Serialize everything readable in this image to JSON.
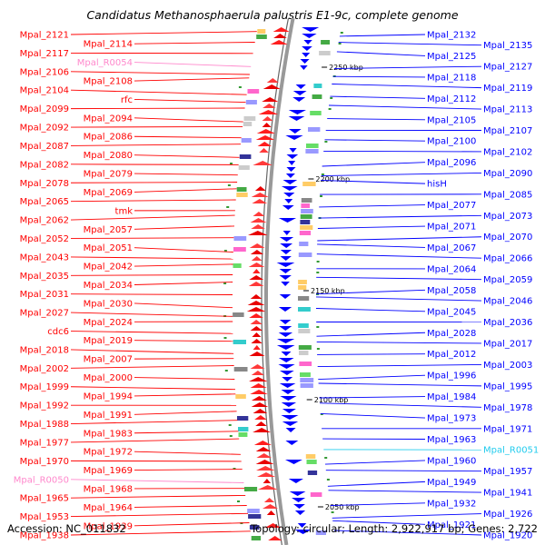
{
  "title": "Candidatus Methanosphaerula palustris E1-9c, complete genome",
  "footer": {
    "accession": "Accession: NC_011832",
    "summary": "Topology: circular; Length: 2,922,917 bp; Genes: 2,722"
  },
  "colors": {
    "plus_strand": "#ff0000",
    "minus_strand": "#0000ff",
    "rna_plus": "#ff88cc",
    "rna_minus": "#22ccee",
    "backbone": "#999999"
  },
  "ruler": [
    {
      "label": "2250 kbp"
    },
    {
      "label": "2200 kbp"
    },
    {
      "label": "2150 kbp"
    },
    {
      "label": "2100 kbp"
    },
    {
      "label": "2050 kbp"
    }
  ],
  "left_labels": [
    {
      "text": "Mpal_2121",
      "kind": "gene"
    },
    {
      "text": "Mpal_2114",
      "kind": "gene"
    },
    {
      "text": "Mpal_2117",
      "kind": "gene"
    },
    {
      "text": "Mpal_R0054",
      "kind": "rna"
    },
    {
      "text": "Mpal_2106",
      "kind": "gene"
    },
    {
      "text": "Mpal_2108",
      "kind": "gene"
    },
    {
      "text": "Mpal_2104",
      "kind": "gene"
    },
    {
      "text": "rfc",
      "kind": "gene"
    },
    {
      "text": "Mpal_2099",
      "kind": "gene"
    },
    {
      "text": "Mpal_2094",
      "kind": "gene"
    },
    {
      "text": "Mpal_2092",
      "kind": "gene"
    },
    {
      "text": "Mpal_2086",
      "kind": "gene"
    },
    {
      "text": "Mpal_2087",
      "kind": "gene"
    },
    {
      "text": "Mpal_2080",
      "kind": "gene"
    },
    {
      "text": "Mpal_2082",
      "kind": "gene"
    },
    {
      "text": "Mpal_2079",
      "kind": "gene"
    },
    {
      "text": "Mpal_2078",
      "kind": "gene"
    },
    {
      "text": "Mpal_2069",
      "kind": "gene"
    },
    {
      "text": "Mpal_2065",
      "kind": "gene"
    },
    {
      "text": "tmk",
      "kind": "gene"
    },
    {
      "text": "Mpal_2062",
      "kind": "gene"
    },
    {
      "text": "Mpal_2057",
      "kind": "gene"
    },
    {
      "text": "Mpal_2052",
      "kind": "gene"
    },
    {
      "text": "Mpal_2051",
      "kind": "gene"
    },
    {
      "text": "Mpal_2043",
      "kind": "gene"
    },
    {
      "text": "Mpal_2042",
      "kind": "gene"
    },
    {
      "text": "Mpal_2035",
      "kind": "gene"
    },
    {
      "text": "Mpal_2034",
      "kind": "gene"
    },
    {
      "text": "Mpal_2031",
      "kind": "gene"
    },
    {
      "text": "Mpal_2030",
      "kind": "gene"
    },
    {
      "text": "Mpal_2027",
      "kind": "gene"
    },
    {
      "text": "Mpal_2024",
      "kind": "gene"
    },
    {
      "text": "cdc6",
      "kind": "gene"
    },
    {
      "text": "Mpal_2019",
      "kind": "gene"
    },
    {
      "text": "Mpal_2018",
      "kind": "gene"
    },
    {
      "text": "Mpal_2007",
      "kind": "gene"
    },
    {
      "text": "Mpal_2002",
      "kind": "gene"
    },
    {
      "text": "Mpal_2000",
      "kind": "gene"
    },
    {
      "text": "Mpal_1999",
      "kind": "gene"
    },
    {
      "text": "Mpal_1994",
      "kind": "gene"
    },
    {
      "text": "Mpal_1992",
      "kind": "gene"
    },
    {
      "text": "Mpal_1991",
      "kind": "gene"
    },
    {
      "text": "Mpal_1988",
      "kind": "gene"
    },
    {
      "text": "Mpal_1983",
      "kind": "gene"
    },
    {
      "text": "Mpal_1977",
      "kind": "gene"
    },
    {
      "text": "Mpal_1972",
      "kind": "gene"
    },
    {
      "text": "Mpal_1970",
      "kind": "gene"
    },
    {
      "text": "Mpal_1969",
      "kind": "gene"
    },
    {
      "text": "Mpal_R0050",
      "kind": "rna"
    },
    {
      "text": "Mpal_1968",
      "kind": "gene"
    },
    {
      "text": "Mpal_1965",
      "kind": "gene"
    },
    {
      "text": "Mpal_1964",
      "kind": "gene"
    },
    {
      "text": "Mpal_1953",
      "kind": "gene"
    },
    {
      "text": "Mpal_1939",
      "kind": "gene"
    },
    {
      "text": "Mpal_1938",
      "kind": "gene"
    }
  ],
  "right_labels": [
    {
      "text": "Mpal_2132",
      "kind": "gene"
    },
    {
      "text": "Mpal_2135",
      "kind": "gene"
    },
    {
      "text": "Mpal_2125",
      "kind": "gene"
    },
    {
      "text": "Mpal_2127",
      "kind": "gene"
    },
    {
      "text": "Mpal_2118",
      "kind": "gene"
    },
    {
      "text": "Mpal_2119",
      "kind": "gene"
    },
    {
      "text": "Mpal_2112",
      "kind": "gene"
    },
    {
      "text": "Mpal_2113",
      "kind": "gene"
    },
    {
      "text": "Mpal_2105",
      "kind": "gene"
    },
    {
      "text": "Mpal_2107",
      "kind": "gene"
    },
    {
      "text": "Mpal_2100",
      "kind": "gene"
    },
    {
      "text": "Mpal_2102",
      "kind": "gene"
    },
    {
      "text": "Mpal_2096",
      "kind": "gene"
    },
    {
      "text": "Mpal_2090",
      "kind": "gene"
    },
    {
      "text": "hisH",
      "kind": "gene"
    },
    {
      "text": "Mpal_2085",
      "kind": "gene"
    },
    {
      "text": "Mpal_2077",
      "kind": "gene"
    },
    {
      "text": "Mpal_2073",
      "kind": "gene"
    },
    {
      "text": "Mpal_2071",
      "kind": "gene"
    },
    {
      "text": "Mpal_2070",
      "kind": "gene"
    },
    {
      "text": "Mpal_2067",
      "kind": "gene"
    },
    {
      "text": "Mpal_2066",
      "kind": "gene"
    },
    {
      "text": "Mpal_2064",
      "kind": "gene"
    },
    {
      "text": "Mpal_2059",
      "kind": "gene"
    },
    {
      "text": "Mpal_2058",
      "kind": "gene"
    },
    {
      "text": "Mpal_2046",
      "kind": "gene"
    },
    {
      "text": "Mpal_2045",
      "kind": "gene"
    },
    {
      "text": "Mpal_2036",
      "kind": "gene"
    },
    {
      "text": "Mpal_2028",
      "kind": "gene"
    },
    {
      "text": "Mpal_2017",
      "kind": "gene"
    },
    {
      "text": "Mpal_2012",
      "kind": "gene"
    },
    {
      "text": "Mpal_2003",
      "kind": "gene"
    },
    {
      "text": "Mpal_1996",
      "kind": "gene"
    },
    {
      "text": "Mpal_1995",
      "kind": "gene"
    },
    {
      "text": "Mpal_1984",
      "kind": "gene"
    },
    {
      "text": "Mpal_1978",
      "kind": "gene"
    },
    {
      "text": "Mpal_1973",
      "kind": "gene"
    },
    {
      "text": "Mpal_1971",
      "kind": "gene"
    },
    {
      "text": "Mpal_1963",
      "kind": "gene"
    },
    {
      "text": "Mpal_R0051",
      "kind": "rna"
    },
    {
      "text": "Mpal_1960",
      "kind": "gene"
    },
    {
      "text": "Mpal_1957",
      "kind": "gene"
    },
    {
      "text": "Mpal_1949",
      "kind": "gene"
    },
    {
      "text": "Mpal_1941",
      "kind": "gene"
    },
    {
      "text": "Mpal_1932",
      "kind": "gene"
    },
    {
      "text": "Mpal_1926",
      "kind": "gene"
    },
    {
      "text": "Mpal_1921",
      "kind": "gene"
    },
    {
      "text": "Mpal_1920",
      "kind": "gene"
    }
  ]
}
